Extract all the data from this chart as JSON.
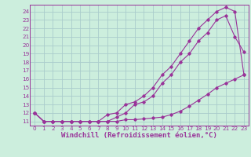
{
  "background_color": "#cceedd",
  "grid_color": "#aacccc",
  "line_color": "#993399",
  "xlim": [
    -0.5,
    23.5
  ],
  "ylim": [
    10.5,
    24.8
  ],
  "xlabel": "Windchill (Refroidissement éolien,°C)",
  "xlabel_fontsize": 6.5,
  "xticks": [
    0,
    1,
    2,
    3,
    4,
    5,
    6,
    7,
    8,
    9,
    10,
    11,
    12,
    13,
    14,
    15,
    16,
    17,
    18,
    19,
    20,
    21,
    22,
    23
  ],
  "yticks": [
    11,
    12,
    13,
    14,
    15,
    16,
    17,
    18,
    19,
    20,
    21,
    22,
    23,
    24
  ],
  "tick_fontsize": 5.2,
  "curve1_x": [
    0,
    1,
    2,
    3,
    4,
    5,
    6,
    7,
    8,
    9,
    10,
    11,
    12,
    13,
    14,
    15,
    16,
    17,
    18,
    19,
    20,
    21,
    22,
    23
  ],
  "curve1_y": [
    12.0,
    11.0,
    11.0,
    11.0,
    11.0,
    11.0,
    11.0,
    11.0,
    11.0,
    11.0,
    11.2,
    11.2,
    11.3,
    11.4,
    11.5,
    11.8,
    12.2,
    12.8,
    13.5,
    14.2,
    15.0,
    15.5,
    16.0,
    16.5
  ],
  "curve2_x": [
    0,
    1,
    2,
    3,
    4,
    5,
    6,
    7,
    8,
    9,
    10,
    11,
    12,
    13,
    14,
    15,
    16,
    17,
    18,
    19,
    20,
    21,
    22,
    23
  ],
  "curve2_y": [
    12.0,
    11.0,
    11.0,
    11.0,
    11.0,
    11.0,
    11.0,
    11.0,
    11.0,
    11.5,
    12.0,
    13.0,
    13.3,
    14.0,
    15.5,
    16.5,
    18.0,
    19.0,
    20.5,
    21.5,
    23.0,
    23.5,
    21.0,
    19.2
  ],
  "curve3_x": [
    0,
    1,
    2,
    3,
    4,
    5,
    6,
    7,
    8,
    9,
    10,
    11,
    12,
    13,
    14,
    15,
    16,
    17,
    18,
    19,
    20,
    21,
    22,
    23
  ],
  "curve3_y": [
    12.0,
    11.0,
    11.0,
    11.0,
    11.0,
    11.0,
    11.0,
    11.0,
    11.8,
    12.0,
    13.0,
    13.3,
    14.0,
    15.0,
    16.5,
    17.5,
    19.0,
    20.5,
    22.0,
    23.0,
    24.0,
    24.5,
    24.0,
    16.5
  ]
}
